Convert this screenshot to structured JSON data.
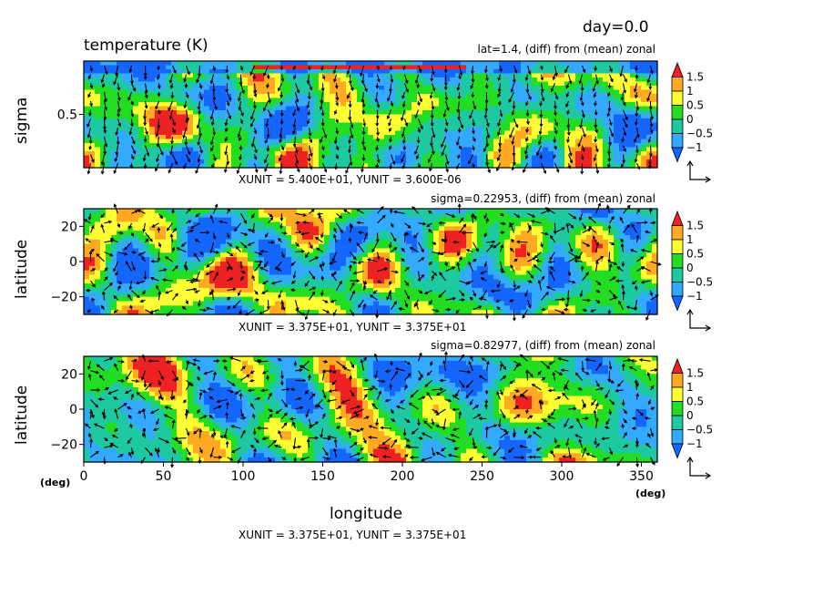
{
  "figure": {
    "day_label": "day=0.0",
    "title": "temperature (K)"
  },
  "colorbar": {
    "tick_labels": [
      "1.5",
      "1",
      "0.5",
      "0",
      "−0.5",
      "−1"
    ],
    "tick_values": [
      1.5,
      1.0,
      0.5,
      0.0,
      -0.5,
      -1.0
    ],
    "colors": [
      "#1565ff",
      "#33aaff",
      "#1ec8a0",
      "#22dd22",
      "#ffff33",
      "#ffaa22",
      "#ee2222"
    ],
    "levels": [
      -1.0,
      -0.5,
      0.0,
      0.5,
      1.0,
      1.5
    ]
  },
  "chart_data": [
    {
      "type": "heatmap",
      "subtitle": "lat=1.4, (diff) from (mean) zonal",
      "ylabel": "sigma",
      "yticks": [
        {
          "label": "0.5",
          "value": 0.5
        }
      ],
      "xlim": [
        0,
        360
      ],
      "ylim": [
        0,
        1
      ],
      "unit_note": "XUNIT = 5.400E+01, YUNIT = 3.600E-06",
      "vectors": true,
      "seed": 11
    },
    {
      "type": "heatmap",
      "subtitle": "sigma=0.22953, (diff) from (mean) zonal",
      "ylabel": "latitude",
      "yticks": [
        {
          "label": "20",
          "value": 20
        },
        {
          "label": "0",
          "value": 0
        },
        {
          "label": "−20",
          "value": -20
        }
      ],
      "xlim": [
        0,
        360
      ],
      "ylim": [
        -30,
        30
      ],
      "unit_note": "XUNIT = 3.375E+01, YUNIT = 3.375E+01",
      "vectors": true,
      "seed": 23
    },
    {
      "type": "heatmap",
      "subtitle": "sigma=0.82977, (diff) from (mean) zonal",
      "ylabel": "latitude",
      "yticks": [
        {
          "label": "20",
          "value": 20
        },
        {
          "label": "0",
          "value": 0
        },
        {
          "label": "−20",
          "value": -20
        }
      ],
      "xlabel": "longitude",
      "xticks": [
        0,
        50,
        100,
        150,
        200,
        250,
        300,
        350
      ],
      "xlim": [
        0,
        360
      ],
      "ylim": [
        -30,
        30
      ],
      "x_unit_label_left": "(deg)",
      "x_unit_label_right": "(deg)",
      "unit_note": "XUNIT = 3.375E+01, YUNIT = 3.375E+01",
      "vectors": true,
      "seed": 37
    }
  ]
}
